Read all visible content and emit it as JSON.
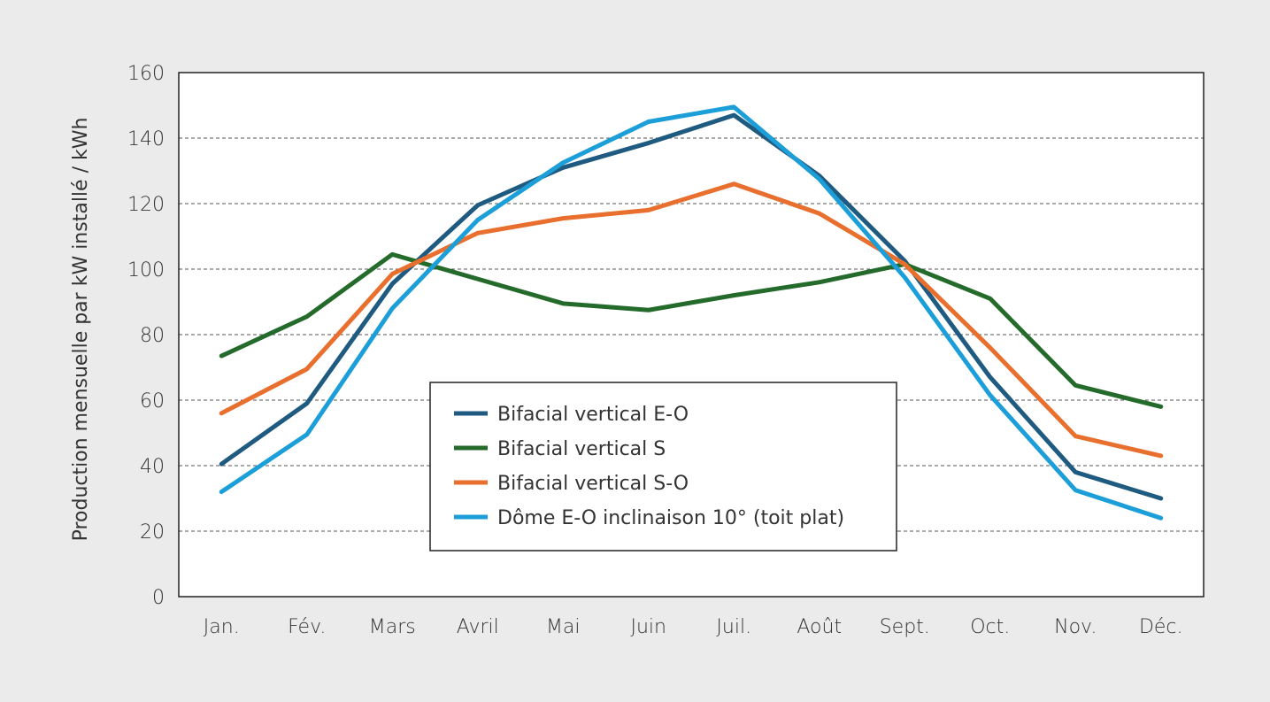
{
  "chart_data": {
    "type": "line",
    "title": "",
    "xlabel": "",
    "ylabel": "Production mensuelle par kW installé / kWh",
    "ylim": [
      0,
      160
    ],
    "yticks": [
      0,
      20,
      40,
      60,
      80,
      100,
      120,
      140,
      160
    ],
    "grid": "horizontal dashed",
    "legend_position": "center-bottom",
    "categories": [
      "Jan.",
      "Fév.",
      "Mars",
      "Avril",
      "Mai",
      "Juin",
      "Juil.",
      "Août",
      "Sept.",
      "Oct.",
      "Nov.",
      "Déc."
    ],
    "series": [
      {
        "name": "Bifacial vertical E-O",
        "color": "#1f5a80",
        "values": [
          40.5,
          59,
          95.5,
          119.5,
          131,
          138.5,
          147,
          128.5,
          102.5,
          67,
          38,
          30
        ]
      },
      {
        "name": "Bifacial vertical S",
        "color": "#246b2b",
        "values": [
          73.5,
          85.5,
          104.5,
          97,
          89.5,
          87.5,
          92,
          96,
          101.5,
          91,
          64.5,
          58
        ]
      },
      {
        "name": "Bifacial vertical S-O",
        "color": "#e86f2e",
        "values": [
          56,
          69.5,
          98.5,
          111,
          115.5,
          118,
          126,
          117,
          101.5,
          76,
          49,
          43
        ]
      },
      {
        "name": "Dôme E-O inclinaison 10° (toit plat)",
        "color": "#1c9fd8",
        "values": [
          32,
          49.5,
          88,
          115,
          132.5,
          145,
          149.5,
          127.5,
          97.5,
          61.5,
          32.5,
          24
        ]
      }
    ]
  }
}
